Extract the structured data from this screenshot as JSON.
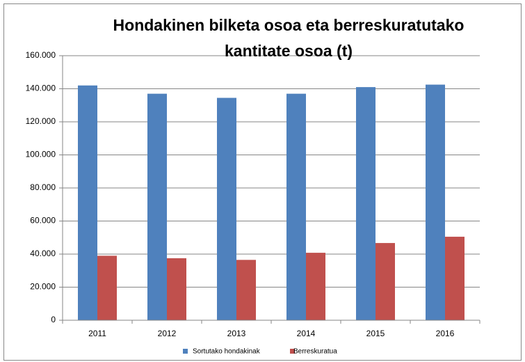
{
  "chart_data": {
    "type": "bar",
    "title": "Hondakinen bilketa osoa eta berreskuratutako kantitate osoa (t)",
    "categories": [
      "2011",
      "2012",
      "2013",
      "2014",
      "2015",
      "2016"
    ],
    "series": [
      {
        "name": "Sortutako hondakinak",
        "color": "#4f81bd",
        "values": [
          142000,
          137000,
          134500,
          137000,
          141000,
          142500
        ]
      },
      {
        "name": "Berreskuratua",
        "color": "#c0504d",
        "values": [
          39000,
          37500,
          36500,
          40800,
          46700,
          50500
        ]
      }
    ],
    "ylim": [
      0,
      160000
    ],
    "yticks": [
      0,
      {
        "value": 20000,
        "label": "20.000"
      },
      {
        "value": 40000,
        "label": "40.000"
      },
      {
        "value": 60000,
        "label": "60.000"
      },
      {
        "value": 80000,
        "label": "80.000"
      },
      {
        "value": 100000,
        "label": "100.000"
      },
      {
        "value": 120000,
        "label": "120.000"
      },
      {
        "value": 140000,
        "label": "140.000"
      },
      {
        "value": 160000,
        "label": "160.000"
      }
    ],
    "grid": true,
    "legend": "bottom"
  }
}
